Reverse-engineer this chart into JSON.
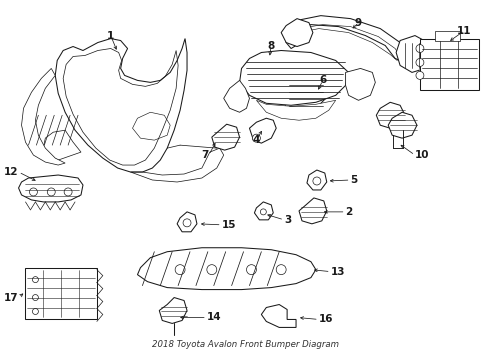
{
  "title": "2018 Toyota Avalon Front Bumper Diagram",
  "bg_color": "#ffffff",
  "line_color": "#1a1a1a",
  "lw": 0.75
}
